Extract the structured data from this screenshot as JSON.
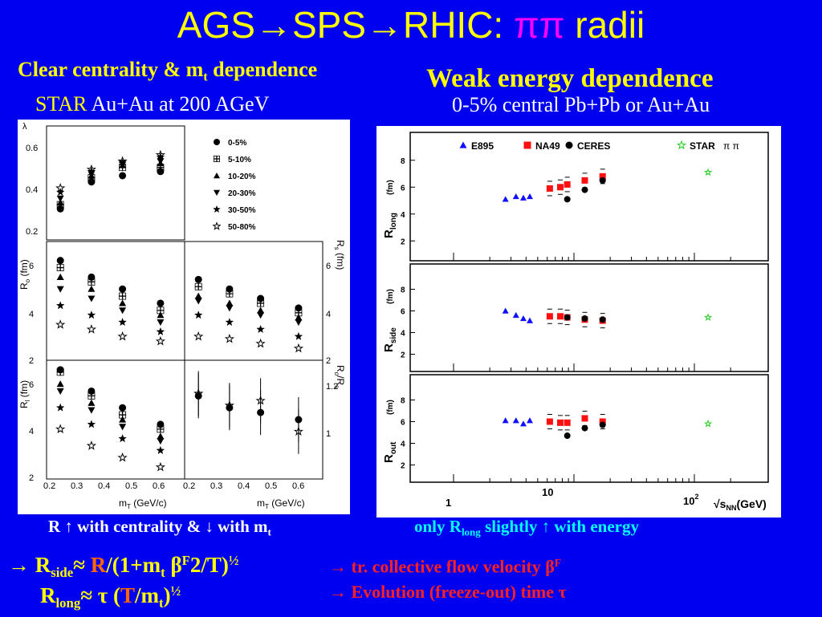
{
  "title": {
    "prefix": "AGS→SPS→RHIC: ",
    "pi": "ππ",
    "suffix": " radii"
  },
  "left": {
    "heading": "Clear centrality & m",
    "heading_sub": "t",
    "heading_end": " dependence",
    "subheading_star": "STAR",
    "subheading_rest": " Au+Au at 200 AGeV",
    "caption_a": "R ↑ with centrality & ↓ with m",
    "caption_sub": "t"
  },
  "right": {
    "heading": "Weak energy dependence",
    "subheading": "0-5% central Pb+Pb or Au+Au",
    "caption_a": "only R",
    "caption_sub": "long",
    "caption_b": " slightly ↑ with energy"
  },
  "bottom": {
    "line1_arrow": "→ R",
    "line1_sub": "side",
    "line1_approx": "≈ ",
    "line1_R": "R",
    "line1_a": "/(1+m",
    "line1_t": "t",
    "line1_beta": " β",
    "line1_F": "F",
    "line1_sq": "2",
    "line1_T": "/T)",
    "line1_half": "½",
    "line2_R": "R",
    "line2_sub": "long",
    "line2_rest": "≈ τ (",
    "line2_T": "T",
    "line2_m": "/m",
    "line2_t": "t",
    "line2_close": ")",
    "line2_half": "½",
    "note1": "→ tr. collective flow velocity β",
    "note1_sup": "F",
    "note2": "→ Evolution (freeze-out) time τ"
  },
  "left_plot_text": {
    "lambda_ticks": [
      "0.6",
      "0.4",
      "0.2"
    ],
    "ro_label": "R",
    "ro_sub": "o",
    "ro_unit": " (fm)",
    "ro_ticks": [
      "6",
      "4",
      "2"
    ],
    "rl_label": "R",
    "rl_sub": "l",
    "rl_unit": " (fm)",
    "rl_ticks": [
      "6",
      "4",
      "2"
    ],
    "rs_label": "R",
    "rs_sub": "s",
    "rs_unit": " (fm)",
    "rs_ticks": [
      "6",
      "4",
      "2"
    ],
    "ratio_label": "R",
    "ratio_sub1": "o",
    "ratio_mid": "/R",
    "ratio_sub2": "s",
    "ratio_ticks": [
      "1.2",
      "1"
    ],
    "x_ticks_left": [
      "0.2",
      "0.3",
      "0.4",
      "0.5",
      "0.6"
    ],
    "x_ticks_right": [
      "0.2",
      "0.3",
      "0.4",
      "0.5",
      "0.6"
    ],
    "xlabel": "m",
    "xlabel_sub": "T",
    "xlabel_unit": " (GeV/c)",
    "legend": [
      "0-5%",
      "5-10%",
      "10-20%",
      "20-30%",
      "30-50%",
      "50-80%"
    ]
  },
  "right_plot_text": {
    "legend": [
      "E895",
      "NA49",
      "CERES",
      "STAR"
    ],
    "star_pi": "π",
    "star_minus": "+",
    "rlong_label": "R",
    "rlong_sub": "long",
    "rside_label": "R",
    "rside_sub": "side",
    "rout_label": "R",
    "rout_sub": "out",
    "unit": "(fm)",
    "y_ticks": [
      "8",
      "6",
      "4",
      "2"
    ],
    "x_ticks": [
      "1",
      "10",
      "10"
    ],
    "x_tick_sup": "2",
    "xlabel_a": "√s",
    "xlabel_sub": "NN",
    "xlabel_b": "(GeV)"
  },
  "chart_data": [
    {
      "type": "scatter",
      "title": "",
      "xlabel": "mT (GeV/c)",
      "x": [
        0.24,
        0.33,
        0.42,
        0.53
      ],
      "panels": [
        {
          "ylabel": "λ",
          "ylim": [
            0.15,
            0.7
          ],
          "series": [
            {
              "name": "0-5%",
              "values": [
                0.3,
                0.43,
                0.46,
                0.48
              ]
            },
            {
              "name": "5-10%",
              "values": [
                0.32,
                0.45,
                0.5,
                0.5
              ]
            },
            {
              "name": "10-20%",
              "values": [
                0.33,
                0.46,
                0.51,
                0.52
              ]
            },
            {
              "name": "20-30%",
              "values": [
                0.35,
                0.47,
                0.52,
                0.53
              ]
            },
            {
              "name": "30-50%",
              "values": [
                0.38,
                0.48,
                0.52,
                0.55
              ]
            },
            {
              "name": "50-80%",
              "values": [
                0.4,
                0.49,
                0.53,
                0.56
              ]
            }
          ]
        },
        {
          "ylabel": "Ro (fm)",
          "ylim": [
            2,
            7
          ],
          "series": [
            {
              "name": "0-5%",
              "values": [
                6.2,
                5.5,
                5.0,
                4.4
              ]
            },
            {
              "name": "5-10%",
              "values": [
                5.9,
                5.3,
                4.7,
                4.1
              ]
            },
            {
              "name": "10-20%",
              "values": [
                5.5,
                5.0,
                4.4,
                3.9
              ]
            },
            {
              "name": "20-30%",
              "values": [
                5.0,
                4.6,
                4.1,
                3.6
              ]
            },
            {
              "name": "30-50%",
              "values": [
                4.3,
                3.9,
                3.6,
                3.2
              ]
            },
            {
              "name": "50-80%",
              "values": [
                3.5,
                3.3,
                3.0,
                2.8
              ]
            }
          ]
        },
        {
          "ylabel": "Rs (fm)",
          "ylim": [
            2,
            7
          ],
          "series": [
            {
              "name": "0-5%",
              "values": [
                5.4,
                5.0,
                4.6,
                4.2
              ]
            },
            {
              "name": "5-10%",
              "values": [
                5.1,
                4.8,
                4.4,
                4.0
              ]
            },
            {
              "name": "10-20%",
              "values": [
                4.7,
                4.4,
                4.1,
                3.8
              ]
            },
            {
              "name": "20-30%",
              "values": [
                4.5,
                4.2,
                3.9,
                3.6
              ]
            },
            {
              "name": "30-50%",
              "values": [
                3.9,
                3.6,
                3.3,
                3.0
              ]
            },
            {
              "name": "50-80%",
              "values": [
                3.0,
                2.9,
                2.7,
                2.5
              ]
            }
          ]
        },
        {
          "ylabel": "Rl (fm)",
          "ylim": [
            2,
            7
          ],
          "series": [
            {
              "name": "0-5%",
              "values": [
                6.6,
                5.7,
                5.0,
                4.3
              ]
            },
            {
              "name": "5-10%",
              "values": [
                6.5,
                5.5,
                4.7,
                4.1
              ]
            },
            {
              "name": "10-20%",
              "values": [
                6.0,
                5.2,
                4.5,
                3.8
              ]
            },
            {
              "name": "20-30%",
              "values": [
                5.7,
                4.9,
                4.2,
                3.6
              ]
            },
            {
              "name": "30-50%",
              "values": [
                5.0,
                4.3,
                3.7,
                3.2
              ]
            },
            {
              "name": "50-80%",
              "values": [
                4.1,
                3.4,
                2.9,
                2.5
              ]
            }
          ]
        },
        {
          "ylabel": "Ro/Rs",
          "ylim": [
            0.8,
            1.3
          ],
          "series": [
            {
              "name": "0-5%",
              "values": [
                1.15,
                1.1,
                1.08,
                1.05
              ]
            },
            {
              "name": "50-80%",
              "values": [
                1.16,
                1.11,
                1.13,
                1.0
              ]
            }
          ]
        }
      ]
    },
    {
      "type": "scatter",
      "title": "",
      "xlabel": "√sNN (GeV)",
      "xscale": "log",
      "panels": [
        {
          "ylabel": "Rlong (fm)",
          "ylim": [
            0,
            10
          ],
          "series": [
            {
              "name": "E895",
              "x": [
                2.7,
                3.3,
                3.8,
                4.3
              ],
              "values": [
                5.1,
                5.3,
                5.2,
                5.3
              ]
            },
            {
              "name": "NA49",
              "x": [
                6.3,
                7.7,
                8.8,
                12.3,
                17.3
              ],
              "values": [
                5.9,
                6.0,
                6.2,
                6.5,
                6.8
              ]
            },
            {
              "name": "CERES",
              "x": [
                8.8,
                12.3,
                17.3
              ],
              "values": [
                5.1,
                5.8,
                6.5
              ]
            },
            {
              "name": "STAR",
              "x": [
                130
              ],
              "values": [
                7.1
              ]
            }
          ]
        },
        {
          "ylabel": "Rside (fm)",
          "ylim": [
            0,
            10
          ],
          "series": [
            {
              "name": "E895",
              "x": [
                2.7,
                3.3,
                3.8,
                4.3
              ],
              "values": [
                6.0,
                5.6,
                5.3,
                5.1
              ]
            },
            {
              "name": "NA49",
              "x": [
                6.3,
                7.7,
                8.8,
                12.3,
                17.3
              ],
              "values": [
                5.5,
                5.5,
                5.4,
                5.2,
                5.1
              ]
            },
            {
              "name": "CERES",
              "x": [
                8.8,
                12.3,
                17.3
              ],
              "values": [
                5.4,
                5.3,
                5.2
              ]
            },
            {
              "name": "STAR",
              "x": [
                130
              ],
              "values": [
                5.4
              ]
            }
          ]
        },
        {
          "ylabel": "Rout (fm)",
          "ylim": [
            0,
            10
          ],
          "series": [
            {
              "name": "E895",
              "x": [
                2.7,
                3.3,
                3.8,
                4.3
              ],
              "values": [
                6.1,
                6.1,
                5.8,
                6.1
              ]
            },
            {
              "name": "NA49",
              "x": [
                6.3,
                7.7,
                8.8,
                12.3,
                17.3
              ],
              "values": [
                6.0,
                5.9,
                5.9,
                6.3,
                6.0
              ]
            },
            {
              "name": "CERES",
              "x": [
                8.8,
                12.3,
                17.3
              ],
              "values": [
                4.7,
                5.4,
                5.7
              ]
            },
            {
              "name": "STAR",
              "x": [
                130
              ],
              "values": [
                5.8
              ]
            }
          ]
        }
      ]
    }
  ]
}
